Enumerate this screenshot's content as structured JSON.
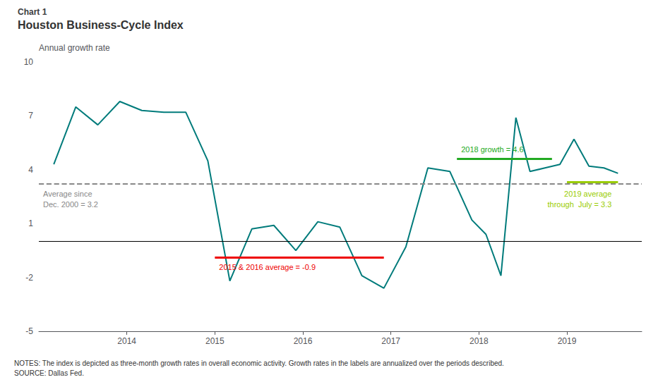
{
  "chart_data": {
    "type": "line",
    "title": "Chart 1",
    "subtitle": "Houston Business-Cycle Index",
    "ylabel": "Annual growth rate",
    "color": "#007B7B",
    "x": [
      2013.17,
      2013.42,
      2013.67,
      2013.92,
      2014.17,
      2014.42,
      2014.67,
      2014.92,
      2015.17,
      2015.42,
      2015.67,
      2015.92,
      2016.17,
      2016.42,
      2016.67,
      2016.92,
      2017.17,
      2017.42,
      2017.67,
      2017.92,
      2018.08,
      2018.25,
      2018.42,
      2018.58,
      2018.75,
      2018.92,
      2019.08,
      2019.25,
      2019.42,
      2019.58
    ],
    "values": [
      4.3,
      7.5,
      6.5,
      7.8,
      7.3,
      7.2,
      7.2,
      4.5,
      -2.2,
      0.7,
      0.9,
      -0.5,
      1.1,
      0.8,
      -1.9,
      -2.6,
      -0.3,
      4.1,
      3.9,
      1.2,
      0.4,
      -1.9,
      6.9,
      3.9,
      4.1,
      4.3,
      5.7,
      4.2,
      4.1,
      3.8
    ],
    "xlim": [
      2013.0,
      2019.85
    ],
    "xticks": [
      2014,
      2015,
      2016,
      2017,
      2018,
      2019
    ],
    "ylim": [
      -5,
      10
    ],
    "yticks": [
      -5,
      -2,
      1,
      4,
      7,
      10
    ],
    "grid": false,
    "annotations": [
      {
        "value": 0,
        "color": "#000000"
      },
      {
        "value": 3.2,
        "text": "Average since\nDec. 2000 = 3.2",
        "color": "#888888",
        "line_style": "dashed"
      },
      {
        "value": -0.9,
        "x": [
          2015.0,
          2016.92
        ],
        "text": "2015 & 2016 average = -0.9",
        "color": "#EE0000"
      },
      {
        "value": 4.6,
        "x": [
          2017.75,
          2018.83
        ],
        "text": "2018 growth = 4.6",
        "color": "#22AA22"
      },
      {
        "value": 3.3,
        "x": [
          2019.0,
          2019.58
        ],
        "text": "2019 average\nthrough  July = 3.3",
        "color": "#99CC00"
      }
    ],
    "notes": [
      "NOTES: The index is depicted as three-month growth rates in overall economic activity. Growth rates in the labels are annualized over the periods described.",
      "SOURCE: Dallas Fed."
    ]
  }
}
